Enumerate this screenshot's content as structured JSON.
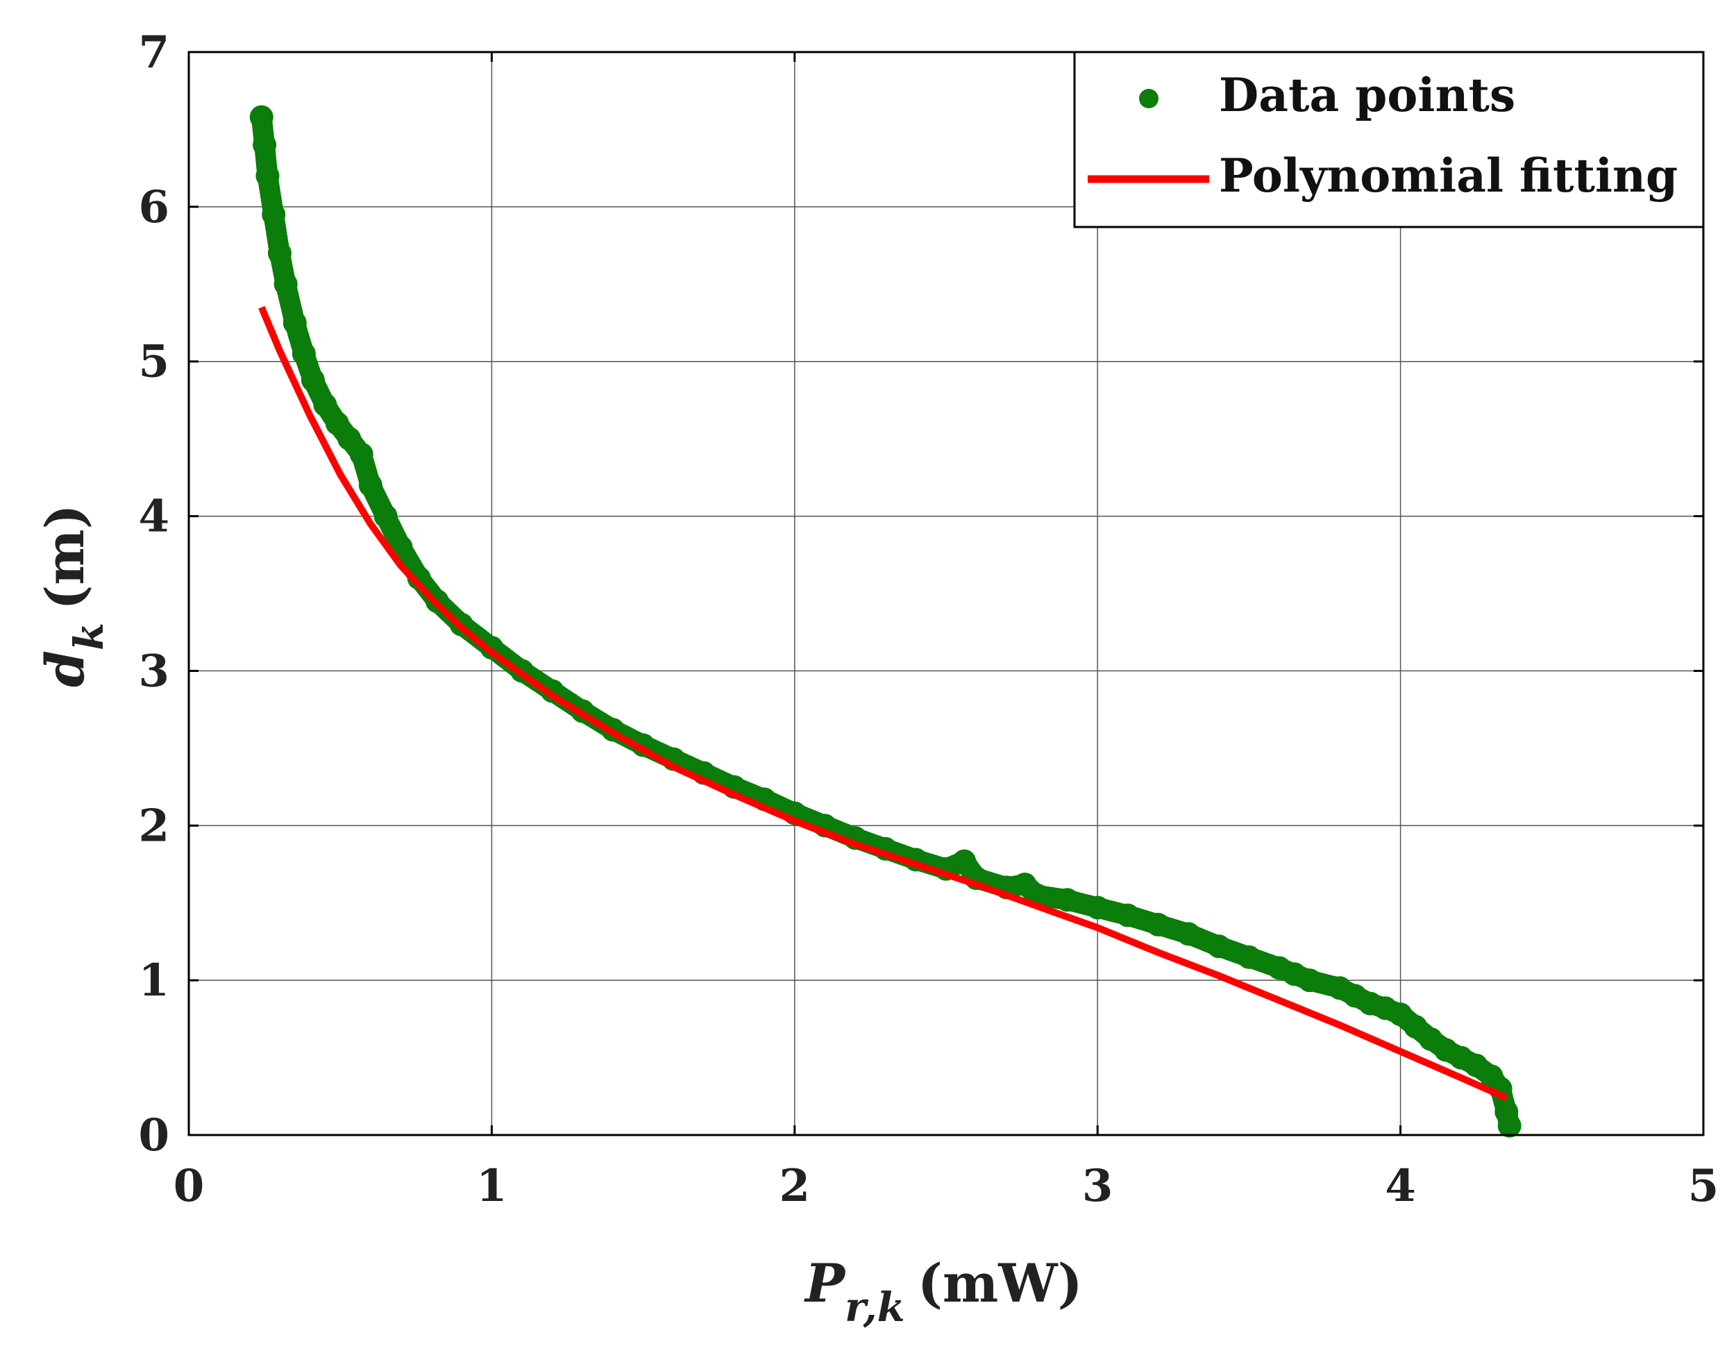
{
  "chart_data": {
    "type": "scatter",
    "title": "",
    "xlabel": {
      "main": "P",
      "sub": "r,k",
      "unit": "(mW)"
    },
    "ylabel": {
      "main": "d",
      "sub": "k",
      "unit": "(m)"
    },
    "xlim": [
      0,
      5
    ],
    "ylim": [
      0,
      7
    ],
    "xticks": [
      "0",
      "1",
      "2",
      "3",
      "4",
      "5"
    ],
    "yticks": [
      "0",
      "1",
      "2",
      "3",
      "4",
      "5",
      "6",
      "7"
    ],
    "grid": true,
    "legend_position": "top-right",
    "series": [
      {
        "name": "Data points",
        "kind": "scatter",
        "color": "#0a7d0a",
        "x": [
          0.24,
          0.25,
          0.26,
          0.28,
          0.3,
          0.32,
          0.35,
          0.38,
          0.41,
          0.45,
          0.49,
          0.53,
          0.57,
          0.6,
          0.65,
          0.7,
          0.76,
          0.82,
          0.9,
          1.0,
          1.1,
          1.2,
          1.3,
          1.4,
          1.5,
          1.6,
          1.7,
          1.8,
          1.9,
          2.0,
          2.1,
          2.2,
          2.3,
          2.4,
          2.5,
          2.56,
          2.6,
          2.7,
          2.76,
          2.8,
          2.9,
          3.0,
          3.1,
          3.2,
          3.3,
          3.4,
          3.5,
          3.6,
          3.65,
          3.7,
          3.8,
          3.85,
          3.9,
          3.95,
          4.0,
          4.05,
          4.1,
          4.15,
          4.2,
          4.25,
          4.3,
          4.33,
          4.35,
          4.36
        ],
        "y": [
          6.58,
          6.4,
          6.2,
          5.95,
          5.7,
          5.5,
          5.25,
          5.05,
          4.88,
          4.72,
          4.6,
          4.5,
          4.4,
          4.2,
          4.0,
          3.8,
          3.6,
          3.45,
          3.3,
          3.15,
          3.0,
          2.87,
          2.74,
          2.62,
          2.52,
          2.43,
          2.34,
          2.25,
          2.17,
          2.08,
          2.0,
          1.92,
          1.85,
          1.78,
          1.72,
          1.77,
          1.66,
          1.6,
          1.62,
          1.55,
          1.52,
          1.47,
          1.42,
          1.36,
          1.3,
          1.22,
          1.15,
          1.08,
          1.04,
          1.0,
          0.95,
          0.9,
          0.85,
          0.82,
          0.78,
          0.7,
          0.62,
          0.55,
          0.5,
          0.45,
          0.38,
          0.3,
          0.15,
          0.06
        ]
      },
      {
        "name": "Polynomial fitting",
        "kind": "line",
        "color": "#ff0000",
        "x": [
          0.24,
          0.3,
          0.4,
          0.5,
          0.6,
          0.7,
          0.8,
          0.9,
          1.0,
          1.2,
          1.4,
          1.6,
          1.8,
          2.0,
          2.2,
          2.4,
          2.6,
          2.8,
          3.0,
          3.2,
          3.4,
          3.6,
          3.8,
          4.0,
          4.2,
          4.35
        ],
        "y": [
          5.35,
          5.07,
          4.65,
          4.27,
          3.95,
          3.68,
          3.47,
          3.28,
          3.12,
          2.84,
          2.6,
          2.38,
          2.2,
          2.03,
          1.88,
          1.75,
          1.62,
          1.48,
          1.34,
          1.18,
          1.03,
          0.87,
          0.71,
          0.54,
          0.37,
          0.24
        ]
      }
    ]
  }
}
